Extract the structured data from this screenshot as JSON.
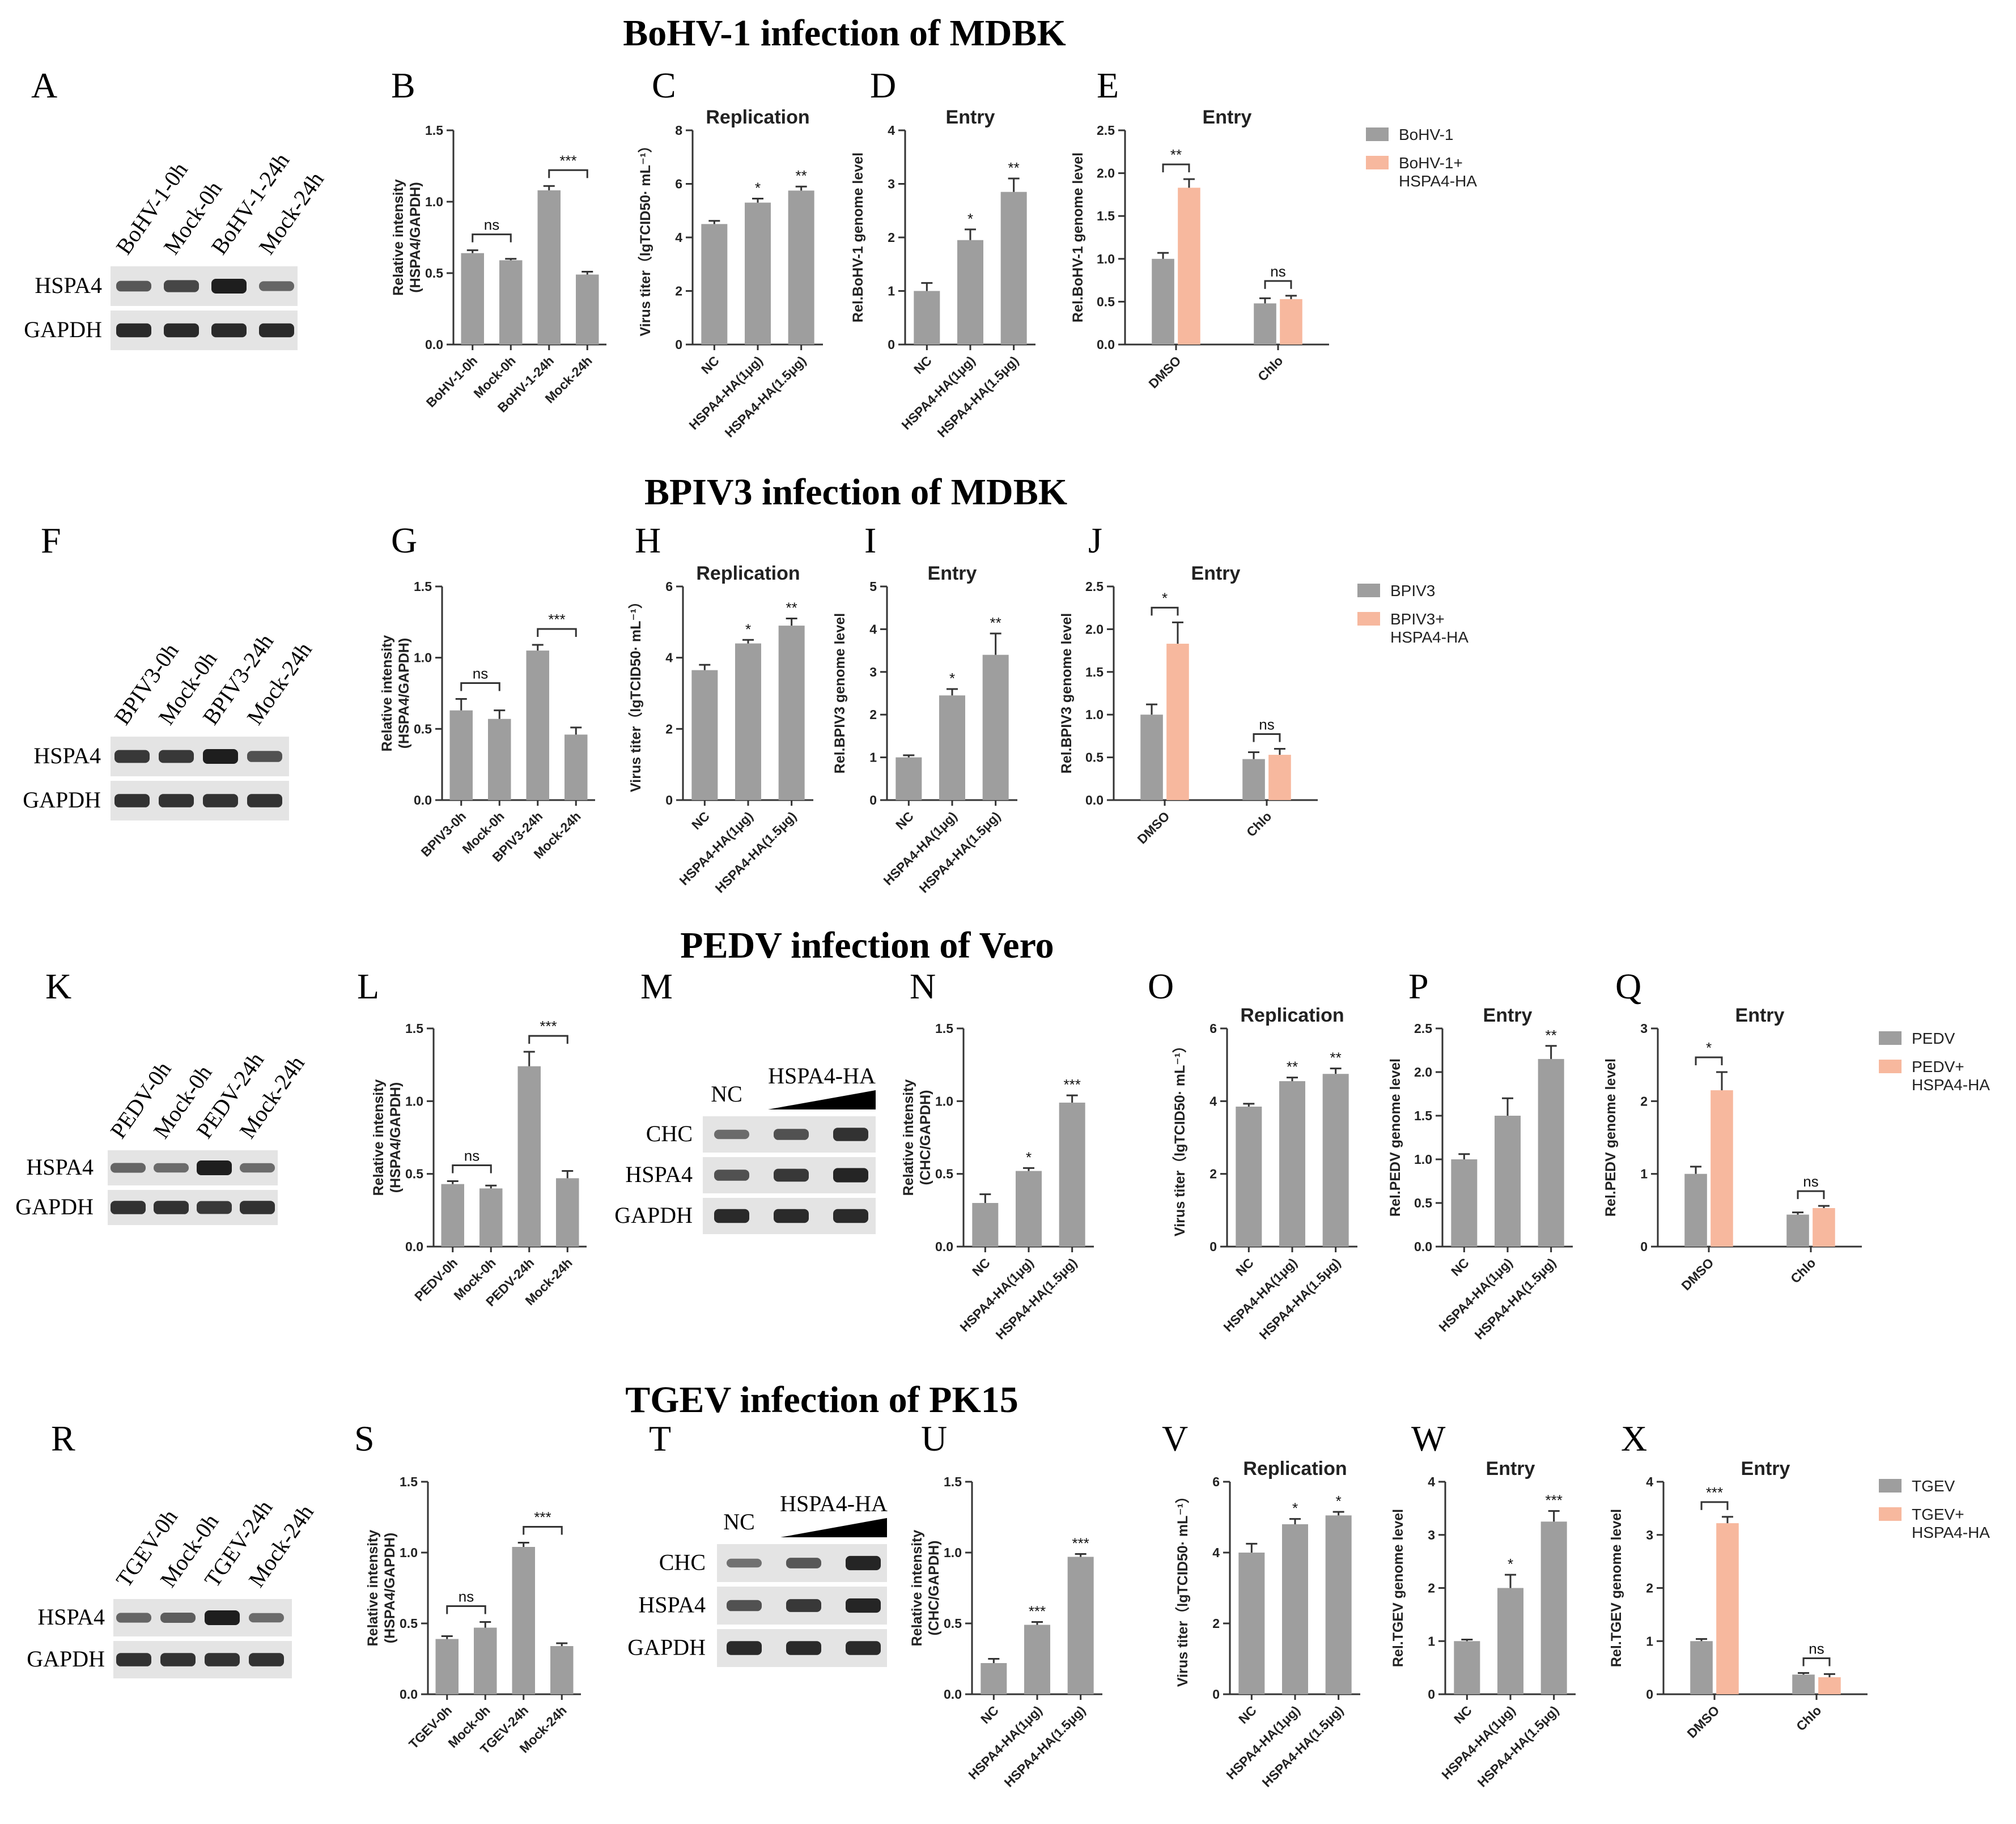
{
  "colors": {
    "grey": "#9e9e9e",
    "salmon": "#f7b89e",
    "axis": "#333333",
    "band": "#1e1e1e",
    "membrane": "#e4e4e4"
  },
  "rows": [
    {
      "title": "BoHV-1 infection of MDBK",
      "blots": [
        {
          "panel": "A",
          "lanes": [
            "BoHV-1-0h",
            "Mock-0h",
            "BoHV-1-24h",
            "Mock-24h"
          ],
          "rows": [
            "HSPA4",
            "GAPDH"
          ],
          "bands": [
            [
              0.55,
              0.7,
              1.0,
              0.45
            ],
            [
              0.9,
              0.9,
              0.9,
              0.9
            ]
          ]
        }
      ],
      "legend": {
        "items": [
          "BoHV-1",
          "BoHV-1+\nHSPA4-HA"
        ]
      }
    },
    {
      "title": "BPIV3 infection of MDBK",
      "blots": [
        {
          "panel": "F",
          "lanes": [
            "BPIV3-0h",
            "Mock-0h",
            "BPIV3-24h",
            "Mock-24h"
          ],
          "rows": [
            "HSPA4",
            "GAPDH"
          ],
          "bands": [
            [
              0.8,
              0.8,
              1.0,
              0.6
            ],
            [
              0.85,
              0.85,
              0.85,
              0.85
            ]
          ]
        }
      ],
      "legend": {
        "items": [
          "BPIV3",
          "BPIV3+\nHSPA4-HA"
        ]
      }
    },
    {
      "title": "PEDV infection of Vero",
      "blots": [
        {
          "panel": "K",
          "lanes": [
            "PEDV-0h",
            "Mock-0h",
            "PEDV-24h",
            "Mock-24h"
          ],
          "rows": [
            "HSPA4",
            "GAPDH"
          ],
          "bands": [
            [
              0.45,
              0.4,
              1.0,
              0.4
            ],
            [
              0.85,
              0.85,
              0.8,
              0.85
            ]
          ]
        },
        {
          "panel": "M",
          "lanes": [
            "NC",
            "HSPA4-HA"
          ],
          "rows": [
            "CHC",
            "HSPA4",
            "GAPDH"
          ],
          "bands": [
            [
              0.4,
              0.6,
              0.85
            ],
            [
              0.6,
              0.8,
              0.95
            ],
            [
              0.9,
              0.9,
              0.9
            ]
          ]
        }
      ],
      "legend": {
        "items": [
          "PEDV",
          "PEDV+\nHSPA4-HA"
        ]
      }
    },
    {
      "title": "TGEV infection of PK15",
      "blots": [
        {
          "panel": "R",
          "lanes": [
            "TGEV-0h",
            "Mock-0h",
            "TGEV-24h",
            "Mock-24h"
          ],
          "rows": [
            "HSPA4",
            "GAPDH"
          ],
          "bands": [
            [
              0.45,
              0.5,
              1.0,
              0.4
            ],
            [
              0.85,
              0.85,
              0.85,
              0.85
            ]
          ]
        },
        {
          "panel": "T",
          "lanes": [
            "NC",
            "HSPA4-HA"
          ],
          "rows": [
            "CHC",
            "HSPA4",
            "GAPDH"
          ],
          "bands": [
            [
              0.35,
              0.55,
              0.95
            ],
            [
              0.6,
              0.8,
              0.95
            ],
            [
              0.9,
              0.9,
              0.9
            ]
          ]
        }
      ],
      "legend": {
        "items": [
          "TGEV",
          "TGEV+\nHSPA4-HA"
        ]
      }
    }
  ],
  "chart_data": [
    {
      "panel": "B",
      "type": "bar",
      "title": "",
      "ylabel": "Relative intensity\n(HSPA4/GAPDH)",
      "ylim": [
        0,
        1.5
      ],
      "yticks": [
        0.0,
        0.5,
        1.0,
        1.5
      ],
      "categories": [
        "BoHV-1-0h",
        "Mock-0h",
        "BoHV-1-24h",
        "Mock-24h"
      ],
      "values": [
        0.64,
        0.59,
        1.08,
        0.49
      ],
      "errors": [
        0.02,
        0.01,
        0.03,
        0.02
      ],
      "stars": [
        "",
        "",
        "",
        ""
      ],
      "brackets": [
        {
          "from": 0,
          "to": 1,
          "label": "ns"
        },
        {
          "from": 2,
          "to": 3,
          "label": "***"
        }
      ]
    },
    {
      "panel": "C",
      "type": "bar",
      "title": "Replication",
      "ylabel": "Virus titer（lgTCID50· mL⁻¹）",
      "ylim": [
        0,
        8
      ],
      "yticks": [
        0,
        2,
        4,
        6,
        8
      ],
      "categories": [
        "NC",
        "HSPA4-HA(1μg)",
        "HSPA4-HA(1.5μg)"
      ],
      "values": [
        4.5,
        5.3,
        5.75
      ],
      "errors": [
        0.12,
        0.15,
        0.15
      ],
      "stars": [
        "",
        "*",
        "**"
      ]
    },
    {
      "panel": "D",
      "type": "bar",
      "title": "Entry",
      "ylabel": "Rel.BoHV-1 genome level",
      "ylim": [
        0,
        4
      ],
      "yticks": [
        0,
        1,
        2,
        3,
        4
      ],
      "categories": [
        "NC",
        "HSPA4-HA(1μg)",
        "HSPA4-HA(1.5μg)"
      ],
      "values": [
        1.0,
        1.95,
        2.85
      ],
      "errors": [
        0.15,
        0.2,
        0.25
      ],
      "stars": [
        "",
        "*",
        "**"
      ]
    },
    {
      "panel": "E",
      "type": "grouped_bar",
      "title": "Entry",
      "ylabel": "Rel.BoHV-1 genome level",
      "ylim": [
        0,
        2.5
      ],
      "yticks": [
        0.0,
        0.5,
        1.0,
        1.5,
        2.0,
        2.5
      ],
      "categories": [
        "DMSO",
        "Chlo"
      ],
      "series": [
        {
          "name": "BoHV-1",
          "values": [
            1.0,
            0.48
          ],
          "errors": [
            0.07,
            0.06
          ]
        },
        {
          "name": "BoHV-1+HSPA4-HA",
          "values": [
            1.83,
            0.53
          ],
          "errors": [
            0.1,
            0.04
          ]
        }
      ],
      "brackets": [
        {
          "group": 0,
          "label": "**"
        },
        {
          "group": 1,
          "label": "ns"
        }
      ]
    },
    {
      "panel": "G",
      "type": "bar",
      "title": "",
      "ylabel": "Relative intensity\n(HSPA4/GAPDH)",
      "ylim": [
        0,
        1.5
      ],
      "yticks": [
        0.0,
        0.5,
        1.0,
        1.5
      ],
      "categories": [
        "BPIV3-0h",
        "Mock-0h",
        "BPIV3-24h",
        "Mock-24h"
      ],
      "values": [
        0.63,
        0.57,
        1.05,
        0.46
      ],
      "errors": [
        0.08,
        0.06,
        0.04,
        0.05
      ],
      "stars": [
        "",
        "",
        "",
        ""
      ],
      "brackets": [
        {
          "from": 0,
          "to": 1,
          "label": "ns"
        },
        {
          "from": 2,
          "to": 3,
          "label": "***"
        }
      ]
    },
    {
      "panel": "H",
      "type": "bar",
      "title": "Replication",
      "ylabel": "Virus titer（lgTCID50· mL⁻¹）",
      "ylim": [
        0,
        6
      ],
      "yticks": [
        0,
        2,
        4,
        6
      ],
      "categories": [
        "NC",
        "HSPA4-HA(1μg)",
        "HSPA4-HA(1.5μg)"
      ],
      "values": [
        3.65,
        4.4,
        4.9
      ],
      "errors": [
        0.15,
        0.1,
        0.2
      ],
      "stars": [
        "",
        "*",
        "**"
      ]
    },
    {
      "panel": "I",
      "type": "bar",
      "title": "Entry",
      "ylabel": "Rel.BPIV3 genome level",
      "ylim": [
        0,
        5
      ],
      "yticks": [
        0,
        1,
        2,
        3,
        4,
        5
      ],
      "categories": [
        "NC",
        "HSPA4-HA(1μg)",
        "HSPA4-HA(1.5μg)"
      ],
      "values": [
        1.0,
        2.45,
        3.4
      ],
      "errors": [
        0.05,
        0.15,
        0.5
      ],
      "stars": [
        "",
        "*",
        "**"
      ]
    },
    {
      "panel": "J",
      "type": "grouped_bar",
      "title": "Entry",
      "ylabel": "Rel.BPIV3 genome level",
      "ylim": [
        0,
        2.5
      ],
      "yticks": [
        0.0,
        0.5,
        1.0,
        1.5,
        2.0,
        2.5
      ],
      "categories": [
        "DMSO",
        "Chlo"
      ],
      "series": [
        {
          "name": "BPIV3",
          "values": [
            1.0,
            0.48
          ],
          "errors": [
            0.12,
            0.08
          ]
        },
        {
          "name": "BPIV3+HSPA4-HA",
          "values": [
            1.83,
            0.53
          ],
          "errors": [
            0.25,
            0.07
          ]
        }
      ],
      "brackets": [
        {
          "group": 0,
          "label": "*"
        },
        {
          "group": 1,
          "label": "ns"
        }
      ]
    },
    {
      "panel": "L",
      "type": "bar",
      "title": "",
      "ylabel": "Relative intensity\n(HSPA4/GAPDH)",
      "ylim": [
        0,
        1.5
      ],
      "yticks": [
        0.0,
        0.5,
        1.0,
        1.5
      ],
      "categories": [
        "PEDV-0h",
        "Mock-0h",
        "PEDV-24h",
        "Mock-24h"
      ],
      "values": [
        0.43,
        0.4,
        1.24,
        0.47
      ],
      "errors": [
        0.02,
        0.02,
        0.1,
        0.05
      ],
      "stars": [
        "",
        "",
        "",
        ""
      ],
      "brackets": [
        {
          "from": 0,
          "to": 1,
          "label": "ns"
        },
        {
          "from": 2,
          "to": 3,
          "label": "***"
        }
      ]
    },
    {
      "panel": "N",
      "type": "bar",
      "title": "",
      "ylabel": "Relative intensity\n(CHC/GAPDH)",
      "ylim": [
        0,
        1.5
      ],
      "yticks": [
        0.0,
        0.5,
        1.0,
        1.5
      ],
      "categories": [
        "NC",
        "HSPA4-HA(1μg)",
        "HSPA4-HA(1.5μg)"
      ],
      "values": [
        0.3,
        0.52,
        0.99
      ],
      "errors": [
        0.06,
        0.02,
        0.05
      ],
      "stars": [
        "",
        "*",
        "***"
      ]
    },
    {
      "panel": "O",
      "type": "bar",
      "title": "Replication",
      "ylabel": "Virus titer（lgTCID50· mL⁻¹）",
      "ylim": [
        0,
        6
      ],
      "yticks": [
        0,
        2,
        4,
        6
      ],
      "categories": [
        "NC",
        "HSPA4-HA(1μg)",
        "HSPA4-HA(1.5μg)"
      ],
      "values": [
        3.85,
        4.55,
        4.75
      ],
      "errors": [
        0.08,
        0.1,
        0.15
      ],
      "stars": [
        "",
        "**",
        "**"
      ]
    },
    {
      "panel": "P",
      "type": "bar",
      "title": "Entry",
      "ylabel": "Rel.PEDV genome level",
      "ylim": [
        0,
        2.5
      ],
      "yticks": [
        0.0,
        0.5,
        1.0,
        1.5,
        2.0,
        2.5
      ],
      "categories": [
        "NC",
        "HSPA4-HA(1μg)",
        "HSPA4-HA(1.5μg)"
      ],
      "values": [
        1.0,
        1.5,
        2.15
      ],
      "errors": [
        0.06,
        0.2,
        0.15
      ],
      "stars": [
        "",
        "",
        "**"
      ]
    },
    {
      "panel": "Q",
      "type": "grouped_bar",
      "title": "Entry",
      "ylabel": "Rel.PEDV genome level",
      "ylim": [
        0,
        3
      ],
      "yticks": [
        0,
        1,
        2,
        3
      ],
      "categories": [
        "DMSO",
        "Chlo"
      ],
      "series": [
        {
          "name": "PEDV",
          "values": [
            1.0,
            0.44
          ],
          "errors": [
            0.1,
            0.03
          ]
        },
        {
          "name": "PEDV+HSPA4-HA",
          "values": [
            2.15,
            0.53
          ],
          "errors": [
            0.25,
            0.03
          ]
        }
      ],
      "brackets": [
        {
          "group": 0,
          "label": "*"
        },
        {
          "group": 1,
          "label": "ns"
        }
      ]
    },
    {
      "panel": "S",
      "type": "bar",
      "title": "",
      "ylabel": "Relative intensity\n(HSPA4/GAPDH)",
      "ylim": [
        0,
        1.5
      ],
      "yticks": [
        0.0,
        0.5,
        1.0,
        1.5
      ],
      "categories": [
        "TGEV-0h",
        "Mock-0h",
        "TGEV-24h",
        "Mock-24h"
      ],
      "values": [
        0.39,
        0.47,
        1.04,
        0.34
      ],
      "errors": [
        0.02,
        0.04,
        0.03,
        0.02
      ],
      "stars": [
        "",
        "",
        "",
        ""
      ],
      "brackets": [
        {
          "from": 0,
          "to": 1,
          "label": "ns"
        },
        {
          "from": 2,
          "to": 3,
          "label": "***"
        }
      ]
    },
    {
      "panel": "U",
      "type": "bar",
      "title": "",
      "ylabel": "Relative intensity\n(CHC/GAPDH)",
      "ylim": [
        0,
        1.5
      ],
      "yticks": [
        0.0,
        0.5,
        1.0,
        1.5
      ],
      "categories": [
        "NC",
        "HSPA4-HA(1μg)",
        "HSPA4-HA(1.5μg)"
      ],
      "values": [
        0.22,
        0.49,
        0.97
      ],
      "errors": [
        0.03,
        0.02,
        0.02
      ],
      "stars": [
        "",
        "***",
        "***"
      ]
    },
    {
      "panel": "V",
      "type": "bar",
      "title": "Replication",
      "ylabel": "Virus titer（lgTCID50· mL⁻¹）",
      "ylim": [
        0,
        6
      ],
      "yticks": [
        0,
        2,
        4,
        6
      ],
      "categories": [
        "NC",
        "HSPA4-HA(1μg)",
        "HSPA4-HA(1.5μg)"
      ],
      "values": [
        4.0,
        4.8,
        5.05
      ],
      "errors": [
        0.25,
        0.15,
        0.1
      ],
      "stars": [
        "",
        "*",
        "*"
      ]
    },
    {
      "panel": "W",
      "type": "bar",
      "title": "Entry",
      "ylabel": "Rel.TGEV genome level",
      "ylim": [
        0,
        4
      ],
      "yticks": [
        0,
        1,
        2,
        3,
        4
      ],
      "categories": [
        "NC",
        "HSPA4-HA(1μg)",
        "HSPA4-HA(1.5μg)"
      ],
      "values": [
        1.0,
        2.0,
        3.25
      ],
      "errors": [
        0.03,
        0.25,
        0.2
      ],
      "stars": [
        "",
        "*",
        "***"
      ]
    },
    {
      "panel": "X",
      "type": "grouped_bar",
      "title": "Entry",
      "ylabel": "Rel.TGEV genome level",
      "ylim": [
        0,
        4
      ],
      "yticks": [
        0,
        1,
        2,
        3,
        4
      ],
      "categories": [
        "DMSO",
        "Chlo"
      ],
      "series": [
        {
          "name": "TGEV",
          "values": [
            1.0,
            0.37
          ],
          "errors": [
            0.04,
            0.03
          ]
        },
        {
          "name": "TGEV+HSPA4-HA",
          "values": [
            3.22,
            0.32
          ],
          "errors": [
            0.12,
            0.06
          ]
        }
      ],
      "brackets": [
        {
          "group": 0,
          "label": "***"
        },
        {
          "group": 1,
          "label": "ns"
        }
      ]
    }
  ]
}
